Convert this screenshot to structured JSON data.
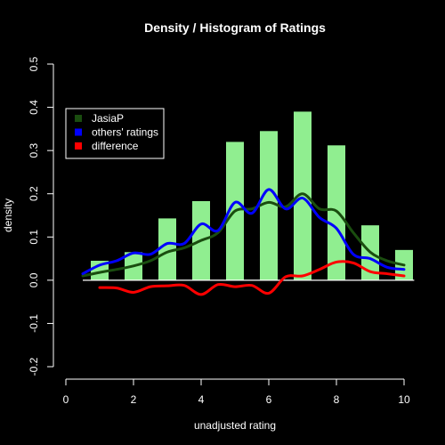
{
  "chart_data": {
    "type": "bar",
    "title": "Density / Histogram of Ratings",
    "xlabel": "unadjusted rating",
    "ylabel": "density",
    "xlim": [
      0,
      10
    ],
    "ylim": [
      -0.2,
      0.5
    ],
    "xticks": [
      "0",
      "2",
      "4",
      "6",
      "8",
      "10"
    ],
    "yticks": [
      "-0.2",
      "-0.1",
      "0.0",
      "0.1",
      "0.2",
      "0.3",
      "0.4",
      "0.5"
    ],
    "grid": false,
    "legend_position": "top-left",
    "histogram": {
      "color": "#90EE90",
      "x": [
        1,
        2,
        3,
        4,
        5,
        6,
        7,
        8,
        9,
        10
      ],
      "values": [
        0.045,
        0.065,
        0.143,
        0.183,
        0.32,
        0.345,
        0.39,
        0.312,
        0.127,
        0.07
      ]
    },
    "series": [
      {
        "name": "JasiaP",
        "color": "#1a4d0f",
        "x": [
          0.5,
          1,
          1.5,
          2,
          2.5,
          3,
          3.5,
          4,
          4.5,
          5,
          5.5,
          6,
          6.5,
          7,
          7.5,
          8,
          8.5,
          9,
          9.5,
          10
        ],
        "y": [
          0.01,
          0.018,
          0.025,
          0.033,
          0.045,
          0.065,
          0.075,
          0.092,
          0.11,
          0.16,
          0.165,
          0.18,
          0.17,
          0.2,
          0.165,
          0.16,
          0.11,
          0.065,
          0.045,
          0.035
        ]
      },
      {
        "name": "others' ratings",
        "color": "#0000ff",
        "x": [
          0.5,
          1,
          1.5,
          2,
          2.5,
          3,
          3.5,
          4,
          4.5,
          5,
          5.5,
          6,
          6.5,
          7,
          7.5,
          8,
          8.5,
          9,
          9.5,
          10
        ],
        "y": [
          0.015,
          0.035,
          0.045,
          0.063,
          0.06,
          0.085,
          0.085,
          0.13,
          0.115,
          0.18,
          0.155,
          0.21,
          0.165,
          0.19,
          0.145,
          0.12,
          0.06,
          0.05,
          0.03,
          0.025
        ]
      },
      {
        "name": "difference",
        "color": "#ff0000",
        "x": [
          1,
          1.5,
          2,
          2.5,
          3,
          3.5,
          4,
          4.5,
          5,
          5.5,
          6,
          6.5,
          7,
          7.5,
          8,
          8.5,
          9,
          9.5,
          10
        ],
        "y": [
          -0.017,
          -0.018,
          -0.028,
          -0.015,
          -0.013,
          -0.012,
          -0.033,
          -0.01,
          -0.015,
          -0.012,
          -0.03,
          0.008,
          0.01,
          0.025,
          0.042,
          0.04,
          0.02,
          0.015,
          0.01
        ]
      }
    ]
  }
}
